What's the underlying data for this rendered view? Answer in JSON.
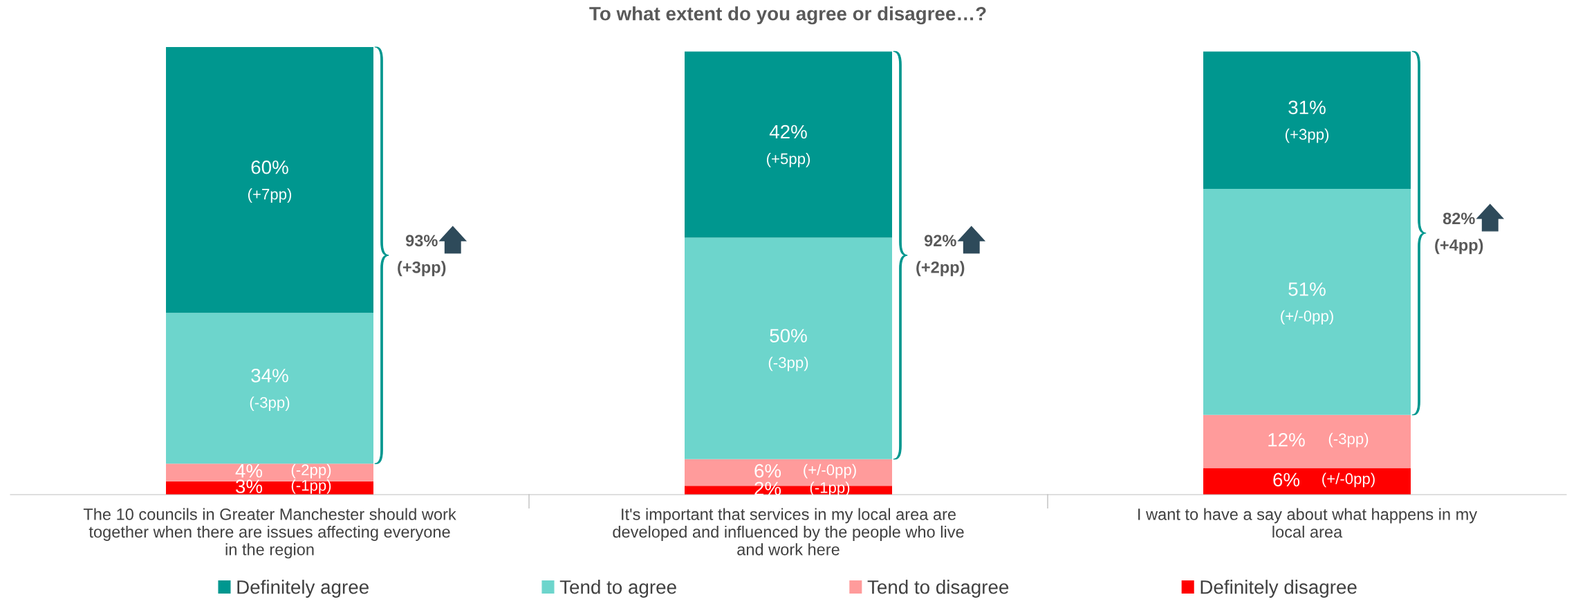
{
  "chart_data": {
    "type": "bar",
    "stacked": true,
    "title": "To what extent do you agree or disagree…?",
    "categories": [
      "The 10 councils in Greater Manchester should work together when there are issues affecting everyone in the region",
      "It's important that services in my local area are developed and influenced by the people who live and work here",
      "I want to have a say about what happens in my local area"
    ],
    "series": [
      {
        "name": "Definitely disagree",
        "color": "#ff0000",
        "values": [
          3,
          2,
          6
        ],
        "value_labels": [
          "3%",
          "2%",
          "6%"
        ]
      },
      {
        "name": "Tend to disagree",
        "color": "#ff9b9b",
        "values": [
          4,
          6,
          12
        ],
        "value_labels": [
          "4%",
          "6%",
          "12%"
        ]
      },
      {
        "name": "Tend to agree",
        "color": "#6dd5cc",
        "values": [
          34,
          50,
          51
        ],
        "value_labels": [
          "34%",
          "50%",
          "51%"
        ]
      },
      {
        "name": "Definitely agree",
        "color": "#00978f",
        "values": [
          60,
          42,
          31
        ],
        "value_labels": [
          "60%",
          "42%",
          "31%"
        ]
      }
    ],
    "ylim": [
      0,
      101
    ],
    "legend": "bottom",
    "grid": false,
    "annotations": [
      "(+7pp)",
      "(-3pp)",
      "(-2pp)",
      "(-1pp)",
      "(+5pp)",
      "(-3pp)",
      "(+/-0pp)",
      "(-1pp)",
      "(+3pp)",
      "(+/-0pp)",
      "(-3pp)",
      "(+/-0pp)",
      "93%",
      "(+3pp)",
      "92%",
      "(+2pp)",
      "82%",
      "(+4pp)"
    ]
  }
}
